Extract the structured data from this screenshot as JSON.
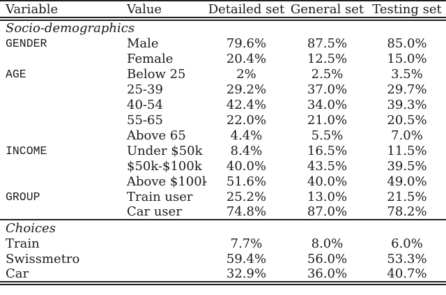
{
  "table": {
    "headers": {
      "variable": "Variable",
      "value": "Value",
      "detailed": "Detailed set",
      "general": "General set",
      "testing": "Testing set"
    },
    "sections": [
      {
        "label": "Socio-demographics",
        "rows": [
          {
            "variable": "GENDER",
            "value": "Male",
            "detailed": "79.6%",
            "general": "87.5%",
            "testing": "85.0%"
          },
          {
            "variable": "",
            "value": "Female",
            "detailed": "20.4%",
            "general": "12.5%",
            "testing": "15.0%"
          },
          {
            "variable": "AGE",
            "value": "Below 25",
            "detailed": "2%",
            "general": "2.5%",
            "testing": "3.5%"
          },
          {
            "variable": "",
            "value": "25-39",
            "detailed": "29.2%",
            "general": "37.0%",
            "testing": "29.7%"
          },
          {
            "variable": "",
            "value": "40-54",
            "detailed": "42.4%",
            "general": "34.0%",
            "testing": "39.3%"
          },
          {
            "variable": "",
            "value": "55-65",
            "detailed": "22.0%",
            "general": "21.0%",
            "testing": "20.5%"
          },
          {
            "variable": "",
            "value": "Above 65",
            "detailed": "4.4%",
            "general": "5.5%",
            "testing": "7.0%"
          },
          {
            "variable": "INCOME",
            "value": "Under $50k",
            "detailed": "8.4%",
            "general": "16.5%",
            "testing": "11.5%"
          },
          {
            "variable": "",
            "value": "$50k-$100k",
            "detailed": "40.0%",
            "general": "43.5%",
            "testing": "39.5%"
          },
          {
            "variable": "",
            "value": "Above $100k",
            "detailed": "51.6%",
            "general": "40.0%",
            "testing": "49.0%"
          },
          {
            "variable": "GROUP",
            "value": "Train user",
            "detailed": "25.2%",
            "general": "13.0%",
            "testing": "21.5%"
          },
          {
            "variable": "",
            "value": "Car user",
            "detailed": "74.8%",
            "general": "87.0%",
            "testing": "78.2%"
          }
        ]
      },
      {
        "label": "Choices",
        "rows": [
          {
            "variable": "Train",
            "value": "",
            "detailed": "7.7%",
            "general": "8.0%",
            "testing": "6.0%"
          },
          {
            "variable": "Swissmetro",
            "value": "",
            "detailed": "59.4%",
            "general": "56.0%",
            "testing": "53.3%"
          },
          {
            "variable": "Car",
            "value": "",
            "detailed": "32.9%",
            "general": "36.0%",
            "testing": "40.7%"
          }
        ]
      }
    ]
  }
}
